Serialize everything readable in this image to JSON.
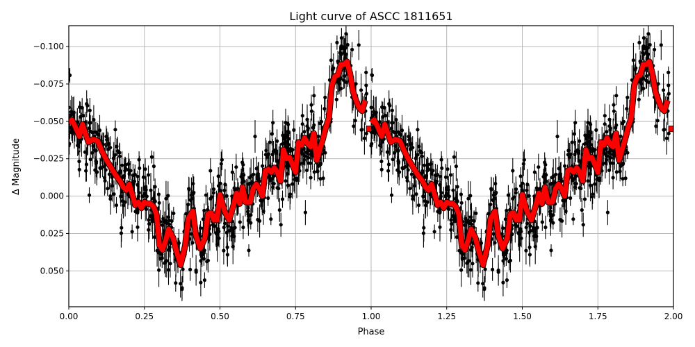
{
  "figure": {
    "title": "Light curve of ASCC 1811651",
    "xlabel": "Phase",
    "ylabel": "Δ Magnitude"
  },
  "chart_data": {
    "type": "scatter",
    "title": "Light curve of ASCC 1811651",
    "xlabel": "Phase",
    "ylabel": "Δ Magnitude",
    "xlim": [
      0.0,
      2.0
    ],
    "ylim": [
      0.074,
      -0.114
    ],
    "y_inverted": true,
    "grid": true,
    "legend": null,
    "xticks": [
      "0.00",
      "0.25",
      "0.50",
      "0.75",
      "1.00",
      "1.25",
      "1.50",
      "1.75",
      "2.00"
    ],
    "yticks": [
      "−0.100",
      "−0.075",
      "−0.050",
      "−0.025",
      "0.000",
      "0.025",
      "0.050"
    ],
    "ytick_values": [
      -0.1,
      -0.075,
      -0.05,
      -0.025,
      0.0,
      0.025,
      0.05
    ],
    "xtick_values": [
      0.0,
      0.25,
      0.5,
      0.75,
      1.0,
      1.25,
      1.5,
      1.75,
      2.0
    ],
    "series": [
      {
        "name": "observations",
        "style": "black points with vertical error bars",
        "color": "#000000",
        "note": "~1500 points per cycle, phase-folded and repeated over 0-2; quasi-sinusoidal trend: max brightness (-0.06 to -0.10) near phase 0.0 and 0.87, minimum (+0.03 to +0.07) near phase 0.35-0.42; typical error bar ~0.01"
      },
      {
        "name": "binned mean",
        "style": "thick red line with dark outline",
        "color": "#ff0000",
        "phase": [
          0.0,
          0.01,
          0.02,
          0.035,
          0.045,
          0.055,
          0.065,
          0.08,
          0.095,
          0.11,
          0.125,
          0.14,
          0.155,
          0.17,
          0.18,
          0.19,
          0.2,
          0.21,
          0.22,
          0.23,
          0.24,
          0.25,
          0.26,
          0.27,
          0.28,
          0.29,
          0.3,
          0.31,
          0.32,
          0.33,
          0.345,
          0.355,
          0.37,
          0.385,
          0.395,
          0.41,
          0.42,
          0.435,
          0.45,
          0.46,
          0.47,
          0.48,
          0.485,
          0.49,
          0.5,
          0.515,
          0.53,
          0.545,
          0.555,
          0.565,
          0.575,
          0.585,
          0.6,
          0.61,
          0.62,
          0.63,
          0.64,
          0.65,
          0.66,
          0.67,
          0.68,
          0.69,
          0.7,
          0.71,
          0.72,
          0.73,
          0.74,
          0.75,
          0.76,
          0.77,
          0.78,
          0.79,
          0.8,
          0.81,
          0.82,
          0.83,
          0.84,
          0.85,
          0.86,
          0.87,
          0.88,
          0.89,
          0.9,
          0.91,
          0.92,
          0.93,
          0.94,
          0.95,
          0.96,
          0.97,
          0.98
        ],
        "values": [
          -0.049,
          -0.051,
          -0.047,
          -0.04,
          -0.048,
          -0.042,
          -0.036,
          -0.038,
          -0.037,
          -0.03,
          -0.024,
          -0.019,
          -0.014,
          -0.01,
          -0.006,
          -0.004,
          -0.008,
          -0.001,
          0.006,
          0.004,
          0.008,
          0.004,
          0.005,
          0.005,
          0.007,
          0.012,
          0.033,
          0.036,
          0.03,
          0.022,
          0.028,
          0.036,
          0.046,
          0.033,
          0.015,
          0.01,
          0.026,
          0.035,
          0.028,
          0.012,
          0.011,
          0.016,
          0.013,
          0.016,
          -0.001,
          0.01,
          0.016,
          0.006,
          -0.002,
          0.005,
          -0.006,
          0.004,
          0.004,
          -0.005,
          -0.008,
          -0.005,
          0.0,
          -0.017,
          -0.018,
          -0.016,
          -0.019,
          -0.016,
          -0.01,
          -0.031,
          -0.025,
          -0.026,
          -0.021,
          -0.016,
          -0.036,
          -0.034,
          -0.039,
          -0.035,
          -0.033,
          -0.042,
          -0.024,
          -0.031,
          -0.038,
          -0.046,
          -0.052,
          -0.074,
          -0.08,
          -0.081,
          -0.088,
          -0.088,
          -0.09,
          -0.082,
          -0.07,
          -0.064,
          -0.059,
          -0.057,
          -0.064
        ],
        "repeat_offset": 1.0,
        "trailing_fragment": {
          "phase": [
            0.985,
            1.0
          ],
          "values": [
            -0.045,
            -0.045
          ]
        }
      }
    ]
  }
}
